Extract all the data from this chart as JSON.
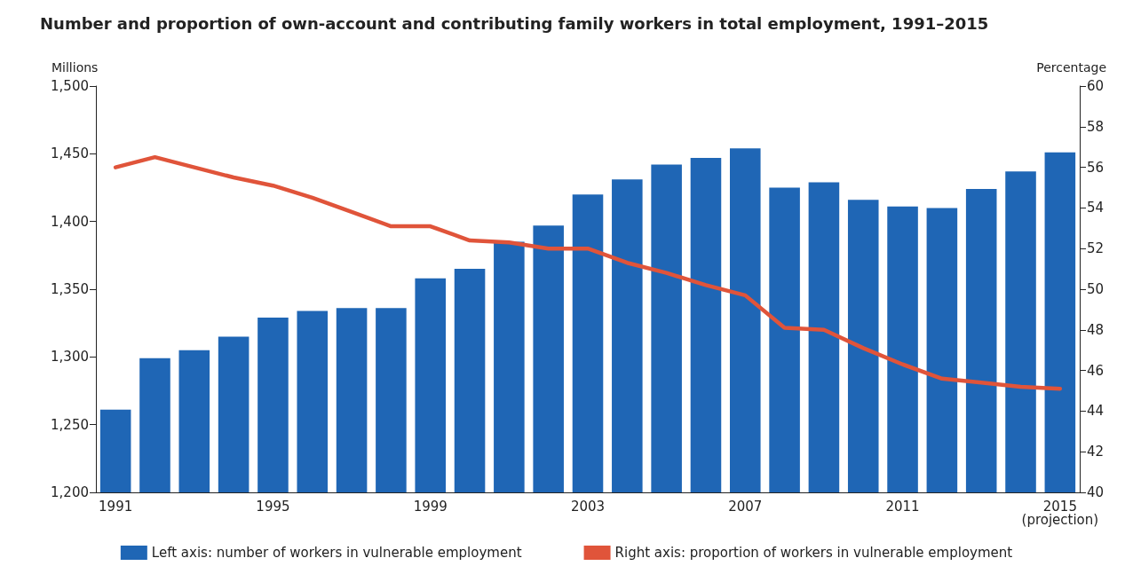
{
  "chart_data": {
    "type": "bar",
    "title": "Number and proportion of own-account and contributing family workers in total employment, 1991–2015",
    "ylabel": "Millions",
    "y2label": "Percentage",
    "categories": [
      "1991",
      null,
      null,
      null,
      "1995",
      null,
      null,
      null,
      "1999",
      null,
      null,
      null,
      "2003",
      null,
      null,
      null,
      "2007",
      null,
      null,
      null,
      "2011",
      null,
      null,
      null,
      "2015\n(projection)"
    ],
    "series": [
      {
        "name": "Left axis: number of workers in vulnerable employment",
        "type": "bar",
        "color": "#1f66b5",
        "values": [
          1261,
          1299,
          1305,
          1315,
          1329,
          1334,
          1336,
          1336,
          1358,
          1365,
          1385,
          1397,
          1420,
          1431,
          1442,
          1447,
          1454,
          1425,
          1429,
          1416,
          1411,
          1410,
          1424,
          1437,
          1451
        ]
      },
      {
        "name": "Right axis: proportion of workers in vulnerable employment",
        "type": "line",
        "axis": "y2",
        "color": "#e0543a",
        "values": [
          56.0,
          56.5,
          56.0,
          55.5,
          55.1,
          54.5,
          53.8,
          53.1,
          53.1,
          52.4,
          52.3,
          52.0,
          52.0,
          51.3,
          50.8,
          50.2,
          49.7,
          48.1,
          48.0,
          47.1,
          46.3,
          45.6,
          45.4,
          45.2,
          45.1
        ]
      }
    ],
    "ylim": [
      1200,
      1500
    ],
    "yticks": [
      {
        "value": 1200,
        "label": "1,200"
      },
      {
        "value": 1250,
        "label": "1,250"
      },
      {
        "value": 1300,
        "label": "1,300"
      },
      {
        "value": 1350,
        "label": "1,350"
      },
      {
        "value": 1400,
        "label": "1,400"
      },
      {
        "value": 1450,
        "label": "1,450"
      },
      {
        "value": 1500,
        "label": "1,500"
      }
    ],
    "y2lim": [
      40,
      60
    ],
    "y2ticks": [
      40,
      42,
      44,
      46,
      48,
      50,
      52,
      54,
      56,
      58,
      60
    ],
    "grid": false,
    "legend": "bottom",
    "marker": "none",
    "line_style": "solid"
  }
}
